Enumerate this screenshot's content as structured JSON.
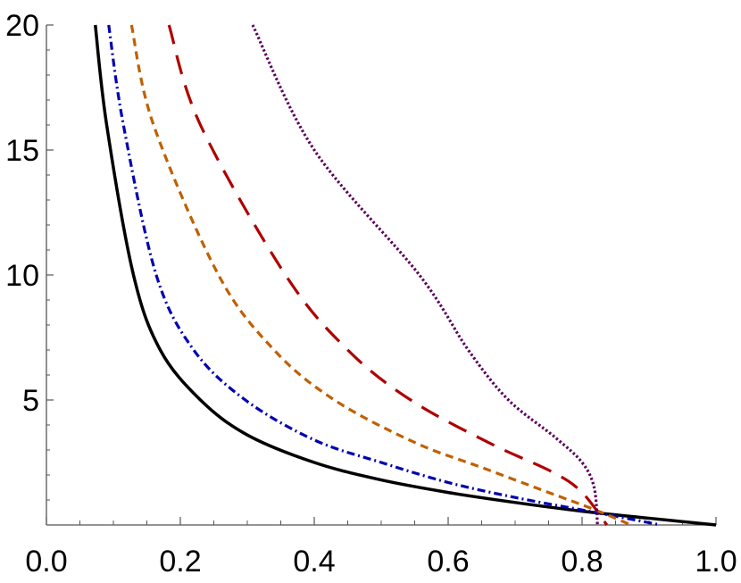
{
  "chart_data": {
    "type": "line",
    "title": "",
    "xlabel": "",
    "ylabel": "",
    "xlim": [
      0,
      1.0
    ],
    "ylim": [
      0,
      20
    ],
    "grid": false,
    "x_ticks": [
      "0.0",
      "0.2",
      "0.4",
      "0.6",
      "0.8",
      "1.0"
    ],
    "x_tick_values": [
      0,
      0.2,
      0.4,
      0.6,
      0.8,
      1.0
    ],
    "y_ticks": [
      "5",
      "10",
      "15",
      "20"
    ],
    "y_tick_values": [
      5,
      10,
      15,
      20
    ],
    "series": [
      {
        "style": "solid",
        "color": "#000000",
        "points": [
          [
            0.073,
            20
          ],
          [
            0.09,
            16
          ],
          [
            0.13,
            10
          ],
          [
            0.17,
            7
          ],
          [
            0.23,
            5
          ],
          [
            0.3,
            3.6
          ],
          [
            0.4,
            2.5
          ],
          [
            0.5,
            1.8
          ],
          [
            0.6,
            1.3
          ],
          [
            0.7,
            0.9
          ],
          [
            0.8,
            0.55
          ],
          [
            0.9,
            0.27
          ],
          [
            1.0,
            0
          ]
        ]
      },
      {
        "style": "dash-dot",
        "color": "#0000b0",
        "points": [
          [
            0.093,
            20
          ],
          [
            0.115,
            16
          ],
          [
            0.164,
            10
          ],
          [
            0.22,
            7
          ],
          [
            0.297,
            5
          ],
          [
            0.4,
            3.4
          ],
          [
            0.5,
            2.5
          ],
          [
            0.6,
            1.7
          ],
          [
            0.7,
            1.1
          ],
          [
            0.8,
            0.6
          ],
          [
            0.86,
            0.3
          ],
          [
            0.917,
            0
          ]
        ]
      },
      {
        "style": "short-dash",
        "color": "#c06000",
        "points": [
          [
            0.127,
            20
          ],
          [
            0.16,
            16
          ],
          [
            0.257,
            10
          ],
          [
            0.34,
            7
          ],
          [
            0.43,
            5
          ],
          [
            0.55,
            3.3
          ],
          [
            0.65,
            2.3
          ],
          [
            0.75,
            1.3
          ],
          [
            0.82,
            0.6
          ],
          [
            0.873,
            0
          ]
        ]
      },
      {
        "style": "long-dash",
        "color": "#b00000",
        "points": [
          [
            0.183,
            20
          ],
          [
            0.23,
            16
          ],
          [
            0.357,
            10
          ],
          [
            0.45,
            7
          ],
          [
            0.544,
            5
          ],
          [
            0.66,
            3.3
          ],
          [
            0.757,
            2.1
          ],
          [
            0.8,
            1.3
          ],
          [
            0.837,
            0
          ]
        ]
      },
      {
        "style": "dotted",
        "color": "#5a005a",
        "points": [
          [
            0.308,
            20
          ],
          [
            0.4,
            15
          ],
          [
            0.557,
            10
          ],
          [
            0.63,
            7
          ],
          [
            0.69,
            5
          ],
          [
            0.76,
            3.5
          ],
          [
            0.8,
            2.5
          ],
          [
            0.818,
            1.5
          ],
          [
            0.823,
            0
          ]
        ]
      }
    ]
  }
}
